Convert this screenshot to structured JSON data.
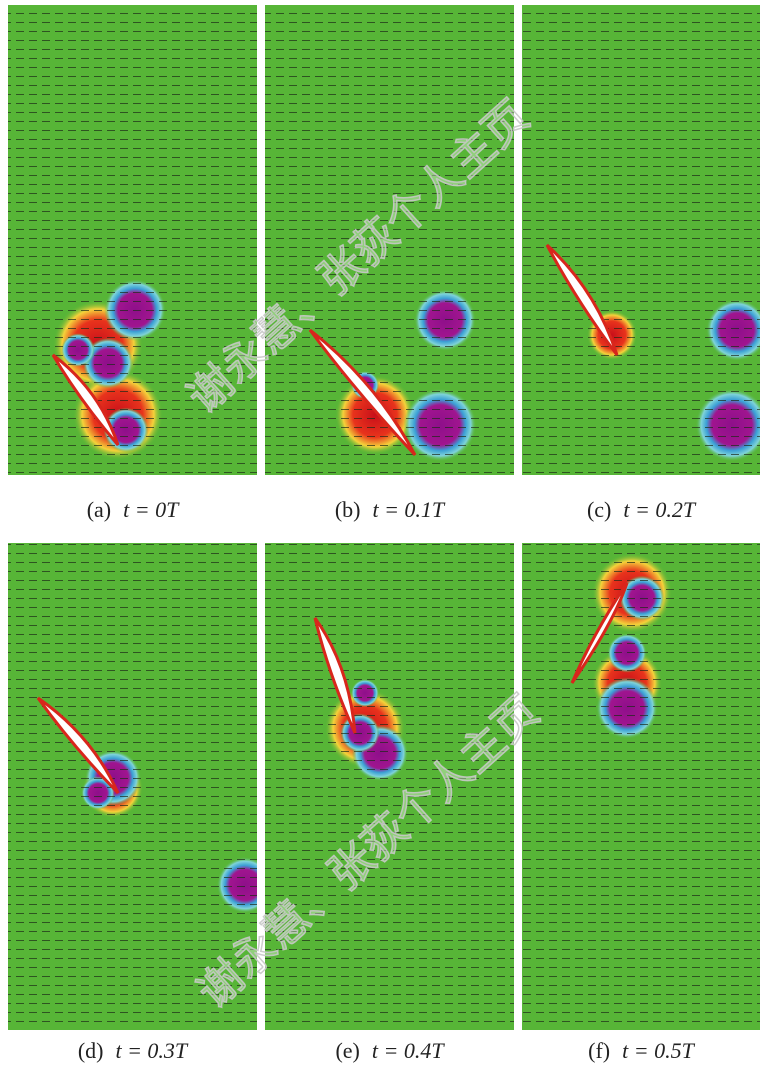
{
  "panels": [
    {
      "label": "(a)",
      "time": "t = 0T"
    },
    {
      "label": "(b)",
      "time": "t = 0.1T"
    },
    {
      "label": "(c)",
      "time": "t = 0.2T"
    },
    {
      "label": "(d)",
      "time": "t = 0.3T"
    },
    {
      "label": "(e)",
      "time": "t = 0.4T"
    },
    {
      "label": "(f)",
      "time": "t = 0.5T"
    }
  ],
  "watermark": "谢永慧、张荻个人主页"
}
